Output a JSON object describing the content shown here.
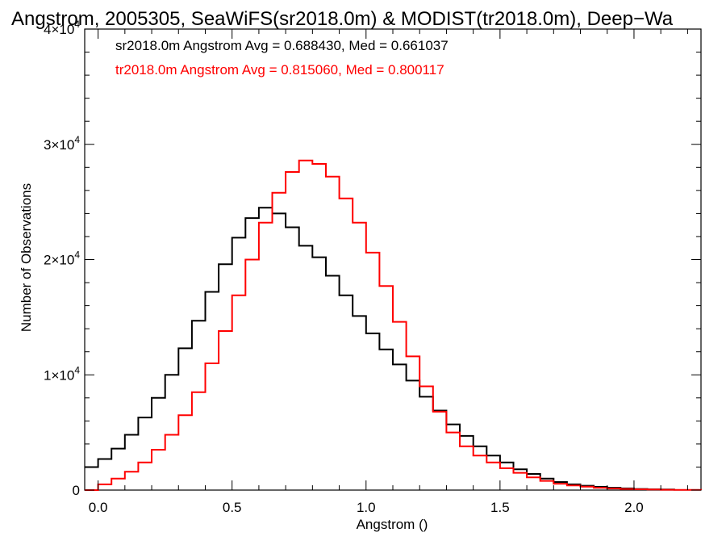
{
  "chart_data": {
    "type": "line",
    "step": true,
    "title": "Angstrom, 2005305, SeaWiFS(sr2018.0m) & MODIST(tr2018.0m), Deep−Wa",
    "xlabel": "Angstrom ()",
    "ylabel": "Number of Observations",
    "xlim": [
      -0.05,
      2.25
    ],
    "ylim": [
      0,
      40000
    ],
    "x_ticks": [
      {
        "value": 0.0,
        "label": "0.0"
      },
      {
        "value": 0.5,
        "label": "0.5"
      },
      {
        "value": 1.0,
        "label": "1.0"
      },
      {
        "value": 1.5,
        "label": "1.5"
      },
      {
        "value": 2.0,
        "label": "2.0"
      }
    ],
    "y_ticks": [
      {
        "value": 0,
        "mantissa": "0",
        "exponent": ""
      },
      {
        "value": 10000,
        "mantissa": "1×10",
        "exponent": "4"
      },
      {
        "value": 20000,
        "mantissa": "2×10",
        "exponent": "4"
      },
      {
        "value": 30000,
        "mantissa": "3×10",
        "exponent": "4"
      },
      {
        "value": 40000,
        "mantissa": "4×10",
        "exponent": "4"
      }
    ],
    "series": [
      {
        "name": "sr2018.0m",
        "color": "#000000",
        "legend": "sr2018.0m Angstrom Avg = 0.688430, Med = 0.661037",
        "points": [
          [
            -0.05,
            2000
          ],
          [
            0.0,
            2700
          ],
          [
            0.05,
            3600
          ],
          [
            0.1,
            4800
          ],
          [
            0.15,
            6300
          ],
          [
            0.2,
            8000
          ],
          [
            0.25,
            10000
          ],
          [
            0.3,
            12300
          ],
          [
            0.35,
            14700
          ],
          [
            0.4,
            17200
          ],
          [
            0.45,
            19600
          ],
          [
            0.5,
            21900
          ],
          [
            0.55,
            23600
          ],
          [
            0.6,
            24500
          ],
          [
            0.65,
            24000
          ],
          [
            0.7,
            22800
          ],
          [
            0.75,
            21200
          ],
          [
            0.8,
            20200
          ],
          [
            0.85,
            18600
          ],
          [
            0.9,
            16900
          ],
          [
            0.95,
            15100
          ],
          [
            1.0,
            13600
          ],
          [
            1.05,
            12200
          ],
          [
            1.1,
            10900
          ],
          [
            1.15,
            9500
          ],
          [
            1.2,
            8100
          ],
          [
            1.25,
            6900
          ],
          [
            1.3,
            5700
          ],
          [
            1.35,
            4700
          ],
          [
            1.4,
            3800
          ],
          [
            1.45,
            3000
          ],
          [
            1.5,
            2400
          ],
          [
            1.55,
            1800
          ],
          [
            1.6,
            1400
          ],
          [
            1.65,
            1000
          ],
          [
            1.7,
            700
          ],
          [
            1.75,
            500
          ],
          [
            1.8,
            380
          ],
          [
            1.85,
            280
          ],
          [
            1.9,
            200
          ],
          [
            1.95,
            150
          ],
          [
            2.0,
            100
          ],
          [
            2.05,
            70
          ],
          [
            2.1,
            50
          ],
          [
            2.15,
            0
          ]
        ]
      },
      {
        "name": "tr2018.0m",
        "color": "#ff0000",
        "legend": "tr2018.0m Angstrom Avg = 0.815060, Med = 0.800117",
        "points": [
          [
            -0.05,
            0
          ],
          [
            0.0,
            500
          ],
          [
            0.05,
            1000
          ],
          [
            0.1,
            1600
          ],
          [
            0.15,
            2400
          ],
          [
            0.2,
            3500
          ],
          [
            0.25,
            4800
          ],
          [
            0.3,
            6500
          ],
          [
            0.35,
            8500
          ],
          [
            0.4,
            11000
          ],
          [
            0.45,
            13800
          ],
          [
            0.5,
            16900
          ],
          [
            0.55,
            20000
          ],
          [
            0.6,
            23200
          ],
          [
            0.65,
            25800
          ],
          [
            0.7,
            27600
          ],
          [
            0.75,
            28600
          ],
          [
            0.8,
            28300
          ],
          [
            0.85,
            27200
          ],
          [
            0.9,
            25300
          ],
          [
            0.95,
            23200
          ],
          [
            1.0,
            20600
          ],
          [
            1.05,
            17700
          ],
          [
            1.1,
            14600
          ],
          [
            1.15,
            11600
          ],
          [
            1.2,
            9000
          ],
          [
            1.25,
            6800
          ],
          [
            1.3,
            5000
          ],
          [
            1.35,
            3800
          ],
          [
            1.4,
            3000
          ],
          [
            1.45,
            2400
          ],
          [
            1.5,
            1900
          ],
          [
            1.55,
            1500
          ],
          [
            1.6,
            1100
          ],
          [
            1.65,
            800
          ],
          [
            1.7,
            550
          ],
          [
            1.75,
            400
          ],
          [
            1.8,
            300
          ],
          [
            1.85,
            200
          ],
          [
            1.9,
            140
          ],
          [
            1.95,
            100
          ],
          [
            2.0,
            70
          ],
          [
            2.05,
            50
          ],
          [
            2.1,
            30
          ],
          [
            2.15,
            20
          ],
          [
            2.25,
            0
          ]
        ]
      }
    ]
  }
}
